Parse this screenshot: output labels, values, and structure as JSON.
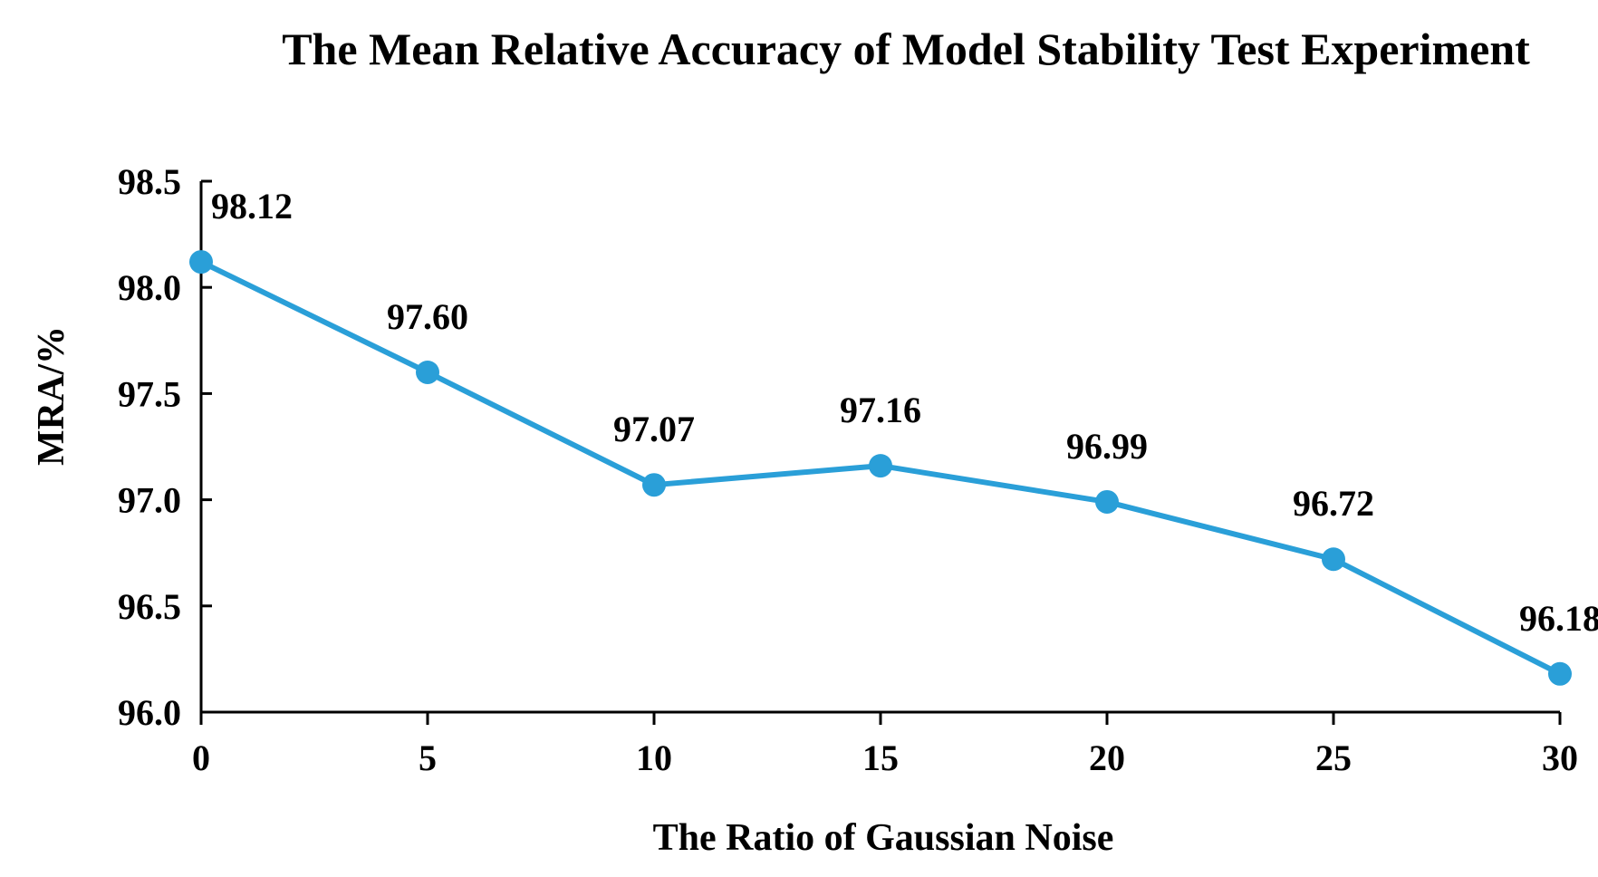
{
  "chart_data": {
    "type": "line",
    "title": "The Mean Relative Accuracy of Model Stability Test Experiment",
    "xlabel": "The Ratio of Gaussian Noise",
    "ylabel": "MRA/%",
    "x": [
      0,
      5,
      10,
      15,
      20,
      25,
      30
    ],
    "series": [
      {
        "name": "MRA",
        "values": [
          98.12,
          97.6,
          97.07,
          97.16,
          96.99,
          96.72,
          96.18
        ],
        "labels": [
          "98.12",
          "97.60",
          "97.07",
          "97.16",
          "96.99",
          "96.72",
          "96.18"
        ]
      }
    ],
    "xticks": [
      "0",
      "5",
      "10",
      "15",
      "20",
      "25",
      "30"
    ],
    "yticks": [
      "96.0",
      "96.5",
      "97.0",
      "97.5",
      "98.0",
      "98.5"
    ],
    "ytick_values": [
      96.0,
      96.5,
      97.0,
      97.5,
      98.0,
      98.5
    ],
    "xlim": [
      0,
      30
    ],
    "ylim": [
      96.0,
      98.5
    ],
    "grid": false,
    "legend": "none",
    "line_color": "#2a9fd8"
  }
}
